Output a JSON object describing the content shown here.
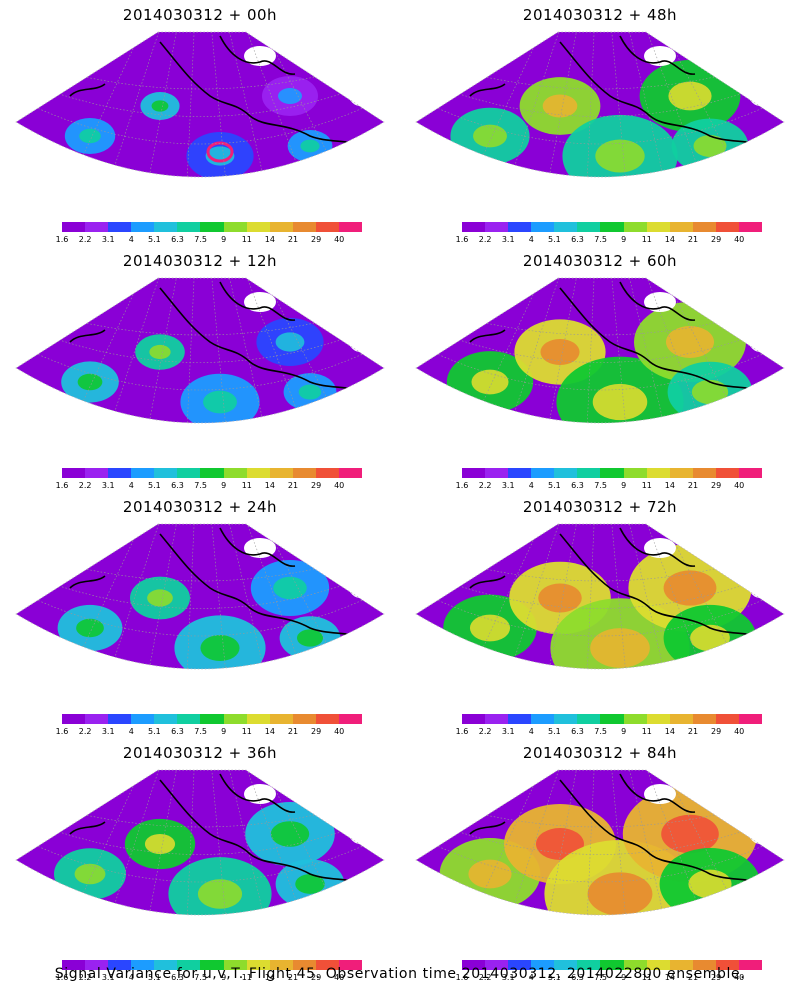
{
  "panels": [
    {
      "title": "2014030312 + 00h",
      "lead_hours": 0
    },
    {
      "title": "2014030312 + 48h",
      "lead_hours": 48
    },
    {
      "title": "2014030312 + 12h",
      "lead_hours": 12
    },
    {
      "title": "2014030312 + 60h",
      "lead_hours": 60
    },
    {
      "title": "2014030312 + 24h",
      "lead_hours": 24
    },
    {
      "title": "2014030312 + 72h",
      "lead_hours": 72
    },
    {
      "title": "2014030312 + 36h",
      "lead_hours": 36
    },
    {
      "title": "2014030312 + 84h",
      "lead_hours": 84
    }
  ],
  "colorbar": {
    "labels": [
      "1.6",
      "2.2",
      "3.1",
      "4",
      "5.1",
      "6.3",
      "7.5",
      "9",
      "11",
      "14",
      "21",
      "29",
      "40"
    ],
    "colors": [
      "#8a00d6",
      "#9a22f0",
      "#2a46ff",
      "#1c9cff",
      "#20c0dc",
      "#10cfa0",
      "#10c830",
      "#8edc2c",
      "#dcdc30",
      "#e8b430",
      "#e88a30",
      "#f05038",
      "#f01e7a"
    ]
  },
  "caption": "Signal Variance for u,v,T. Flight 45. Observation time 2014030312. 2014022800 ensemble."
}
